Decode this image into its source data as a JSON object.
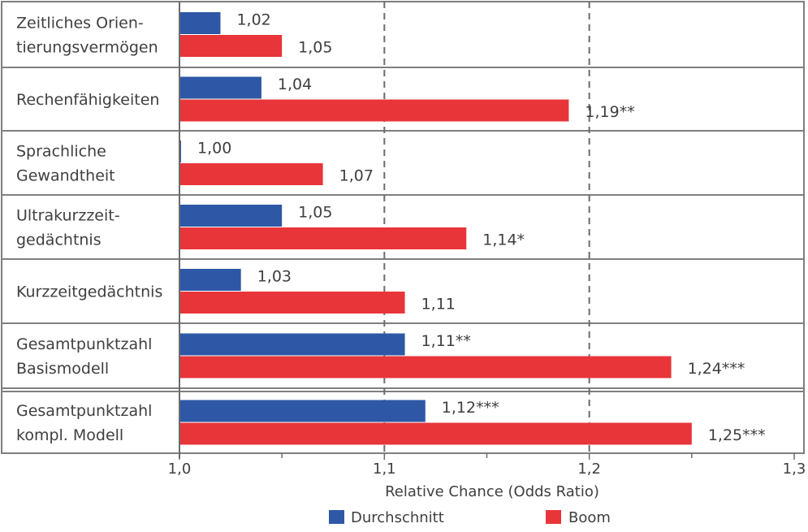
{
  "chart_data": {
    "type": "bar",
    "orientation": "horizontal",
    "categories": [
      [
        "Zeitliches Orien-",
        "tierungsvermögen"
      ],
      [
        "Rechenfähigkeiten"
      ],
      [
        "Sprachliche",
        "Gewandtheit"
      ],
      [
        "Ultrakurzzeit-",
        "gedächtnis"
      ],
      [
        "Kurzzeitgedächtnis"
      ],
      [
        "Gesamtpunktzahl",
        "Basismodell"
      ],
      [
        "Gesamtpunktzahl",
        "kompl. Modell"
      ]
    ],
    "series": [
      {
        "name": "Durchschnitt",
        "color": "#2e58a6",
        "values": [
          1.02,
          1.04,
          1.0,
          1.05,
          1.03,
          1.11,
          1.12
        ],
        "labels": [
          "1,02",
          "1,04",
          "1,00",
          "1,05",
          "1,03",
          "1,11**",
          "1,12***"
        ]
      },
      {
        "name": "Boom",
        "color": "#e8353a",
        "values": [
          1.05,
          1.19,
          1.07,
          1.14,
          1.11,
          1.24,
          1.25
        ],
        "labels": [
          "1,05",
          "1,19**",
          "1,07",
          "1,14*",
          "1,11",
          "1,24***",
          "1,25***"
        ]
      }
    ],
    "xlabel": "Relative Chance (Odds Ratio)",
    "xlim": [
      1.0,
      1.3
    ],
    "xticks": [
      1.0,
      1.1,
      1.2,
      1.3
    ],
    "xtick_labels": [
      "1,0",
      "1,1",
      "1,2",
      "1,3"
    ],
    "dashed_gridlines_at": [
      1.1,
      1.2
    ],
    "legend_position": "bottom"
  }
}
